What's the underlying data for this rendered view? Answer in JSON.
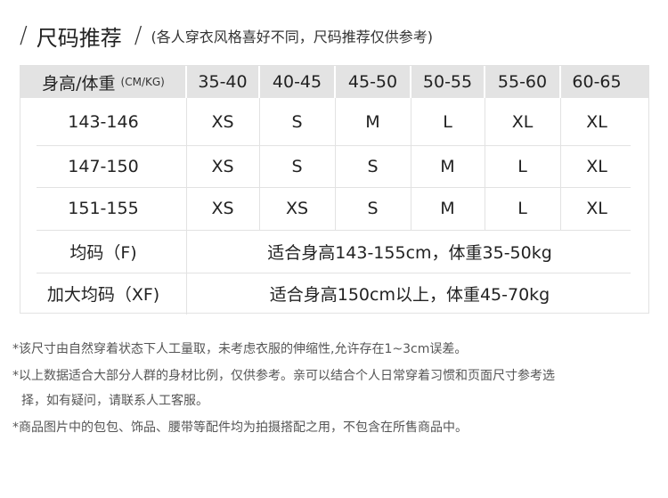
{
  "header": {
    "slash": "/",
    "title": "尺码推荐",
    "subtitle": "(各人穿衣风格喜好不同，尺码推荐仅供参考)"
  },
  "table": {
    "corner_label": "身高/体重",
    "corner_unit": "(CM/KG)",
    "weight_columns": [
      "35-40",
      "40-45",
      "45-50",
      "50-55",
      "55-60",
      "60-65"
    ],
    "rows": [
      {
        "height": "143-146",
        "sizes": [
          "XS",
          "S",
          "M",
          "L",
          "XL",
          "XL"
        ]
      },
      {
        "height": "147-150",
        "sizes": [
          "XS",
          "S",
          "S",
          "M",
          "L",
          "XL"
        ]
      },
      {
        "height": "151-155",
        "sizes": [
          "XS",
          "XS",
          "S",
          "M",
          "L",
          "XL"
        ]
      }
    ],
    "special_rows": [
      {
        "label": "均码（F)",
        "description": "适合身高143-155cm，体重35-50kg"
      },
      {
        "label": "加大均码（XF)",
        "description": "适合身高150cm以上，体重45-70kg"
      }
    ],
    "header_bg": "#e3e3e3"
  },
  "notes": [
    "*该尺寸由自然穿着状态下人工量取，未考虑衣服的伸缩性,允许存在1~3cm误差。",
    "*以上数据适合大部分人群的身材比例，仅供参考。亲可以结合个人日常穿着习惯和页面尺寸参考选",
    "择，如有疑问，请联系人工客服。",
    "*商品图片中的包包、饰品、腰带等配件均为拍摄搭配之用，不包含在所售商品中。"
  ]
}
